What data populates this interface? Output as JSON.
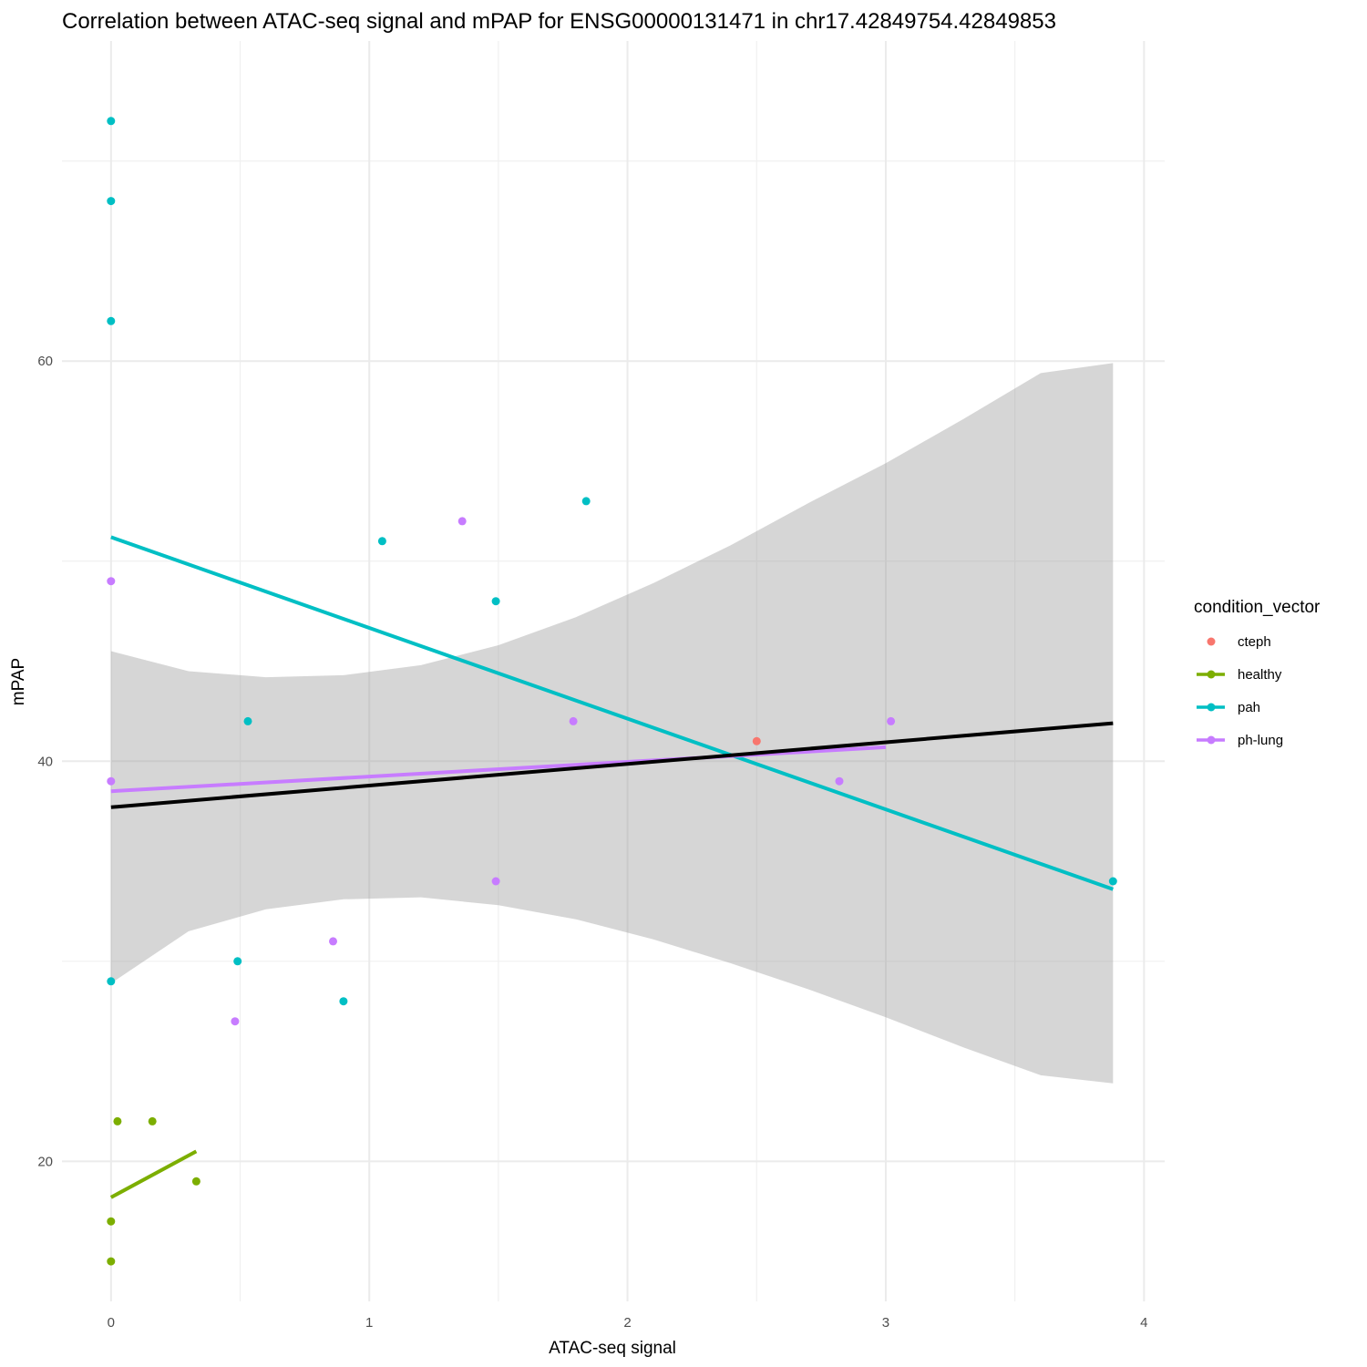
{
  "chart_data": {
    "type": "scatter",
    "title": "Correlation between ATAC-seq signal and mPAP for ENSG00000131471 in chr17.42849754.42849853",
    "xlabel": "ATAC-seq signal",
    "ylabel": "mPAP",
    "xlim": [
      -0.19,
      4.08
    ],
    "ylim": [
      13.0,
      76.0
    ],
    "x_ticks": [
      0,
      1,
      2,
      3,
      4
    ],
    "y_ticks": [
      20,
      40,
      60
    ],
    "grid": true,
    "legend": {
      "title": "condition_vector",
      "position": "right",
      "entries": [
        {
          "label": "cteph",
          "color": "#F8766D",
          "has_line": false
        },
        {
          "label": "healthy",
          "color": "#7CAE00",
          "has_line": true
        },
        {
          "label": "pah",
          "color": "#00BFC4",
          "has_line": true
        },
        {
          "label": "ph-lung",
          "color": "#C77CFF",
          "has_line": true
        }
      ]
    },
    "series": [
      {
        "name": "cteph",
        "color": "#F8766D",
        "points": [
          [
            2.5,
            41
          ]
        ]
      },
      {
        "name": "healthy",
        "color": "#7CAE00",
        "points": [
          [
            0.0,
            17
          ],
          [
            0.0,
            15
          ],
          [
            0.025,
            22
          ],
          [
            0.16,
            22
          ],
          [
            0.33,
            19
          ]
        ],
        "fit": [
          [
            0.0,
            18.2
          ],
          [
            0.33,
            20.5
          ]
        ]
      },
      {
        "name": "pah",
        "color": "#00BFC4",
        "points": [
          [
            0.0,
            72
          ],
          [
            0.0,
            68
          ],
          [
            0.0,
            62
          ],
          [
            0.0,
            29
          ],
          [
            0.49,
            30
          ],
          [
            0.53,
            42
          ],
          [
            0.9,
            28
          ],
          [
            1.05,
            51
          ],
          [
            1.49,
            48
          ],
          [
            1.84,
            53
          ],
          [
            3.88,
            34
          ]
        ],
        "fit": [
          [
            0.0,
            51.2
          ],
          [
            3.88,
            33.6
          ]
        ]
      },
      {
        "name": "ph-lung",
        "color": "#C77CFF",
        "points": [
          [
            0.0,
            49
          ],
          [
            0.0,
            39
          ],
          [
            0.48,
            27
          ],
          [
            0.86,
            31
          ],
          [
            1.36,
            52
          ],
          [
            1.49,
            34
          ],
          [
            1.79,
            42
          ],
          [
            2.82,
            39
          ],
          [
            3.02,
            42
          ]
        ],
        "fit": [
          [
            0.0,
            38.5
          ],
          [
            3.0,
            40.7
          ]
        ]
      }
    ],
    "overall_fit": {
      "color": "#000000",
      "line": [
        [
          0.0,
          37.7
        ],
        [
          3.88,
          41.9
        ]
      ],
      "ci_band": [
        [
          0.0,
          45.5,
          28.9
        ],
        [
          0.3,
          44.5,
          31.5
        ],
        [
          0.6,
          44.2,
          32.6
        ],
        [
          0.9,
          44.3,
          33.1
        ],
        [
          1.2,
          44.8,
          33.2
        ],
        [
          1.5,
          45.8,
          32.8
        ],
        [
          1.8,
          47.2,
          32.1
        ],
        [
          2.1,
          48.9,
          31.1
        ],
        [
          2.4,
          50.8,
          29.9
        ],
        [
          2.7,
          52.9,
          28.6
        ],
        [
          3.0,
          54.9,
          27.2
        ],
        [
          3.3,
          57.1,
          25.7
        ],
        [
          3.6,
          59.4,
          24.3
        ],
        [
          3.88,
          59.9,
          23.9
        ]
      ]
    }
  }
}
